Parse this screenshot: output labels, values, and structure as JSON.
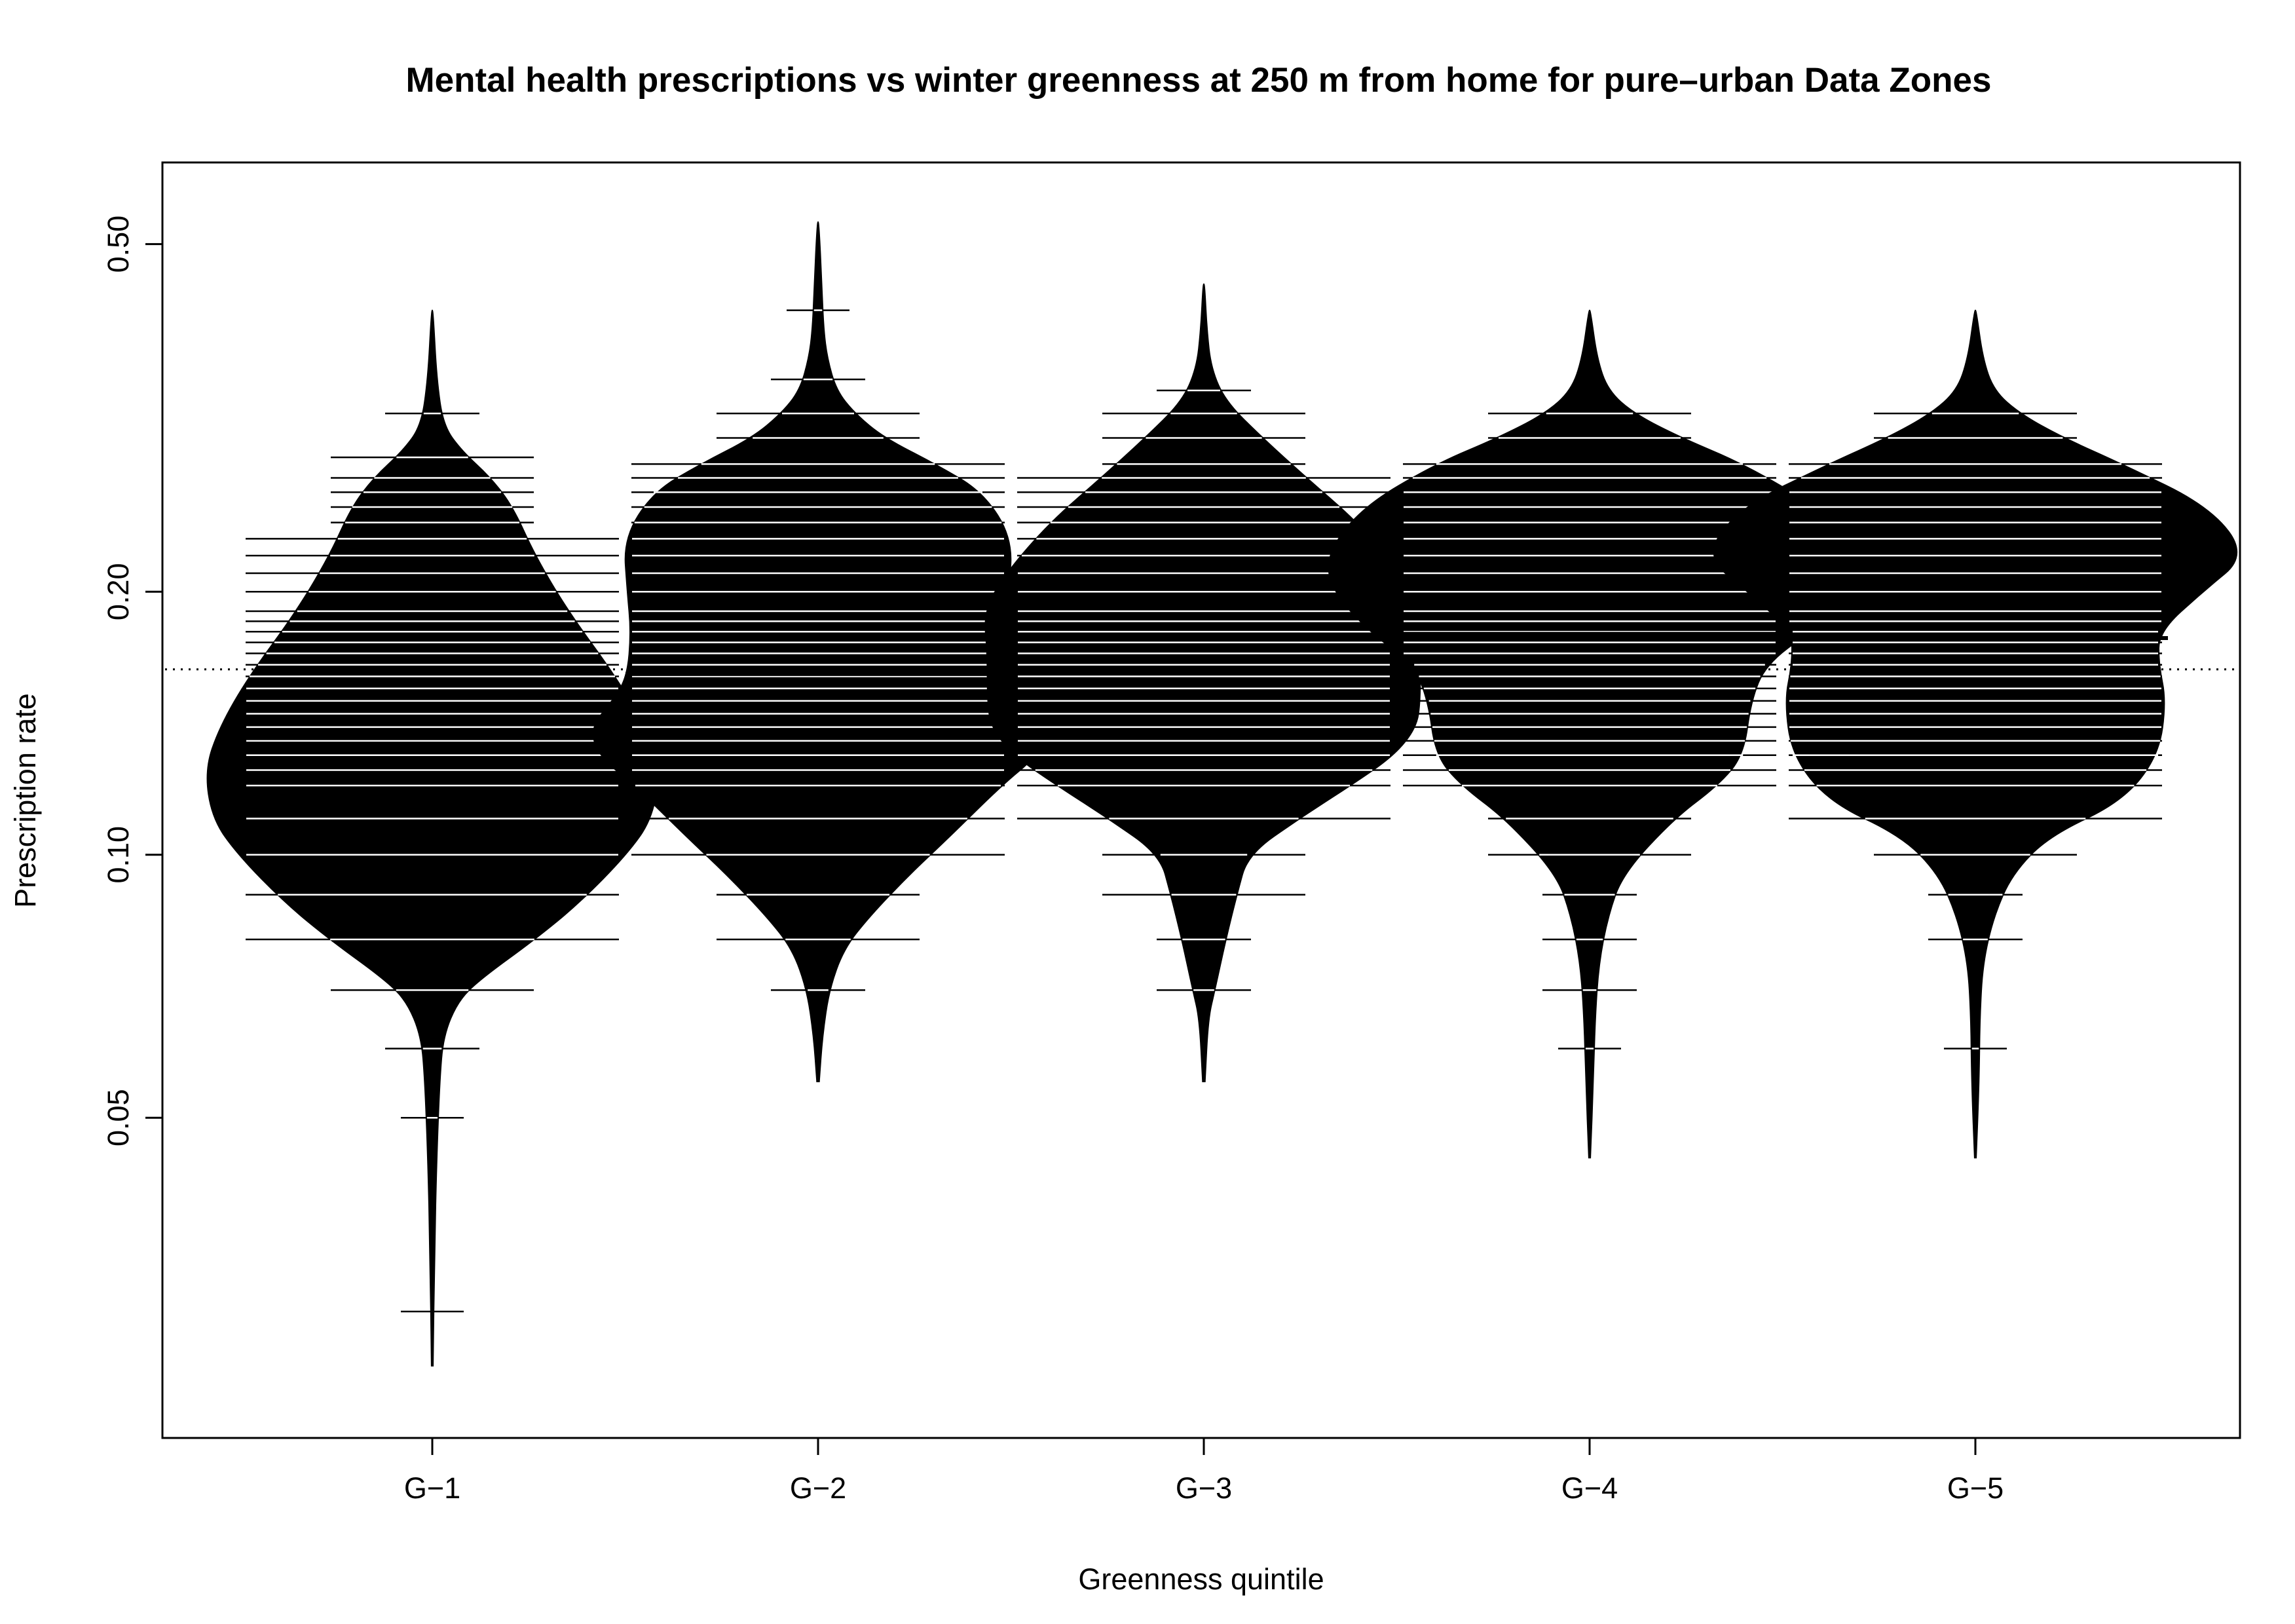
{
  "chart_data": {
    "type": "beanplot",
    "title": "Mental health prescriptions vs winter greenness at 250 m from home for pure–urban Data Zones",
    "xlabel": "Greenness quintile",
    "ylabel": "Prescription rate",
    "y_scale": "log",
    "ylim": [
      0.0215,
      0.62
    ],
    "y_ticks": [
      0.05,
      0.1,
      0.2,
      0.5
    ],
    "y_tick_labels": [
      "0.05",
      "0.10",
      "0.20",
      "0.50"
    ],
    "categories": [
      "G−1",
      "G−2",
      "G−3",
      "G−4",
      "G−5"
    ],
    "overall_mean": 0.163,
    "colors": {
      "bean_fill": "#000000",
      "lines": "#000000",
      "background": "#ffffff"
    },
    "series": [
      {
        "name": "G−1",
        "mean": 0.136,
        "density": [
          [
            0.026,
            0.002
          ],
          [
            0.035,
            0.006
          ],
          [
            0.045,
            0.012
          ],
          [
            0.055,
            0.02
          ],
          [
            0.062,
            0.03
          ],
          [
            0.068,
            0.07
          ],
          [
            0.072,
            0.13
          ],
          [
            0.08,
            0.28
          ],
          [
            0.088,
            0.4
          ],
          [
            0.1,
            0.53
          ],
          [
            0.11,
            0.6
          ],
          [
            0.125,
            0.62
          ],
          [
            0.14,
            0.58
          ],
          [
            0.16,
            0.5
          ],
          [
            0.19,
            0.37
          ],
          [
            0.22,
            0.28
          ],
          [
            0.25,
            0.22
          ],
          [
            0.27,
            0.16
          ],
          [
            0.29,
            0.08
          ],
          [
            0.31,
            0.03
          ],
          [
            0.35,
            0.012
          ],
          [
            0.42,
            0.002
          ]
        ],
        "obs": [
          0.03,
          0.05,
          0.06,
          0.07,
          0.08,
          0.09,
          0.1,
          0.11,
          0.12,
          0.125,
          0.13,
          0.135,
          0.14,
          0.145,
          0.15,
          0.155,
          0.16,
          0.165,
          0.17,
          0.175,
          0.18,
          0.185,
          0.19,
          0.2,
          0.21,
          0.22,
          0.23,
          0.24,
          0.25,
          0.26,
          0.27,
          0.285,
          0.32
        ]
      },
      {
        "name": "G−2",
        "mean": 0.161,
        "density": [
          [
            0.055,
            0.003
          ],
          [
            0.062,
            0.012
          ],
          [
            0.07,
            0.03
          ],
          [
            0.078,
            0.07
          ],
          [
            0.085,
            0.14
          ],
          [
            0.095,
            0.25
          ],
          [
            0.105,
            0.36
          ],
          [
            0.12,
            0.5
          ],
          [
            0.13,
            0.6
          ],
          [
            0.14,
            0.62
          ],
          [
            0.15,
            0.56
          ],
          [
            0.16,
            0.52
          ],
          [
            0.18,
            0.51
          ],
          [
            0.2,
            0.52
          ],
          [
            0.23,
            0.53
          ],
          [
            0.26,
            0.45
          ],
          [
            0.28,
            0.32
          ],
          [
            0.3,
            0.18
          ],
          [
            0.32,
            0.1
          ],
          [
            0.34,
            0.05
          ],
          [
            0.37,
            0.025
          ],
          [
            0.4,
            0.015
          ],
          [
            0.45,
            0.01
          ],
          [
            0.53,
            0.002
          ]
        ],
        "obs": [
          0.07,
          0.08,
          0.09,
          0.1,
          0.11,
          0.12,
          0.125,
          0.13,
          0.135,
          0.14,
          0.145,
          0.15,
          0.155,
          0.16,
          0.165,
          0.17,
          0.175,
          0.18,
          0.185,
          0.19,
          0.2,
          0.21,
          0.22,
          0.23,
          0.24,
          0.25,
          0.26,
          0.27,
          0.28,
          0.3,
          0.32,
          0.35,
          0.42
        ]
      },
      {
        "name": "G−3",
        "mean": 0.163,
        "density": [
          [
            0.055,
            0.003
          ],
          [
            0.065,
            0.012
          ],
          [
            0.07,
            0.03
          ],
          [
            0.08,
            0.06
          ],
          [
            0.09,
            0.09
          ],
          [
            0.1,
            0.12
          ],
          [
            0.11,
            0.26
          ],
          [
            0.12,
            0.4
          ],
          [
            0.13,
            0.52
          ],
          [
            0.14,
            0.58
          ],
          [
            0.15,
            0.59
          ],
          [
            0.17,
            0.59
          ],
          [
            0.19,
            0.6
          ],
          [
            0.21,
            0.54
          ],
          [
            0.24,
            0.42
          ],
          [
            0.27,
            0.28
          ],
          [
            0.3,
            0.16
          ],
          [
            0.33,
            0.06
          ],
          [
            0.36,
            0.02
          ],
          [
            0.4,
            0.008
          ],
          [
            0.45,
            0.002
          ]
        ],
        "obs": [
          0.07,
          0.08,
          0.09,
          0.1,
          0.11,
          0.12,
          0.125,
          0.13,
          0.135,
          0.14,
          0.145,
          0.15,
          0.155,
          0.16,
          0.165,
          0.17,
          0.175,
          0.18,
          0.185,
          0.19,
          0.2,
          0.21,
          0.22,
          0.23,
          0.24,
          0.25,
          0.26,
          0.27,
          0.28,
          0.3,
          0.32,
          0.34
        ]
      },
      {
        "name": "G−4",
        "mean": 0.179,
        "density": [
          [
            0.045,
            0.002
          ],
          [
            0.055,
            0.01
          ],
          [
            0.065,
            0.015
          ],
          [
            0.075,
            0.025
          ],
          [
            0.085,
            0.05
          ],
          [
            0.095,
            0.09
          ],
          [
            0.11,
            0.23
          ],
          [
            0.12,
            0.35
          ],
          [
            0.13,
            0.42
          ],
          [
            0.15,
            0.44
          ],
          [
            0.165,
            0.48
          ],
          [
            0.18,
            0.6
          ],
          [
            0.2,
            0.7
          ],
          [
            0.22,
            0.72
          ],
          [
            0.25,
            0.62
          ],
          [
            0.28,
            0.42
          ],
          [
            0.3,
            0.25
          ],
          [
            0.32,
            0.12
          ],
          [
            0.34,
            0.05
          ],
          [
            0.37,
            0.02
          ],
          [
            0.42,
            0.002
          ]
        ],
        "obs": [
          0.06,
          0.07,
          0.08,
          0.09,
          0.1,
          0.11,
          0.12,
          0.125,
          0.13,
          0.135,
          0.14,
          0.145,
          0.15,
          0.155,
          0.16,
          0.165,
          0.17,
          0.175,
          0.18,
          0.185,
          0.19,
          0.2,
          0.21,
          0.22,
          0.23,
          0.24,
          0.25,
          0.26,
          0.27,
          0.28,
          0.3,
          0.32
        ]
      },
      {
        "name": "G−5",
        "mean": 0.177,
        "density": [
          [
            0.045,
            0.002
          ],
          [
            0.055,
            0.01
          ],
          [
            0.065,
            0.012
          ],
          [
            0.075,
            0.02
          ],
          [
            0.085,
            0.05
          ],
          [
            0.095,
            0.1
          ],
          [
            0.105,
            0.2
          ],
          [
            0.115,
            0.4
          ],
          [
            0.13,
            0.5
          ],
          [
            0.15,
            0.52
          ],
          [
            0.165,
            0.5
          ],
          [
            0.18,
            0.5
          ],
          [
            0.2,
            0.62
          ],
          [
            0.22,
            0.74
          ],
          [
            0.25,
            0.64
          ],
          [
            0.28,
            0.4
          ],
          [
            0.3,
            0.24
          ],
          [
            0.32,
            0.12
          ],
          [
            0.34,
            0.05
          ],
          [
            0.37,
            0.02
          ],
          [
            0.42,
            0.002
          ]
        ],
        "obs": [
          0.06,
          0.08,
          0.09,
          0.1,
          0.11,
          0.12,
          0.125,
          0.13,
          0.135,
          0.14,
          0.145,
          0.15,
          0.155,
          0.16,
          0.165,
          0.17,
          0.175,
          0.18,
          0.185,
          0.19,
          0.2,
          0.21,
          0.22,
          0.23,
          0.24,
          0.25,
          0.26,
          0.27,
          0.28,
          0.3,
          0.32
        ]
      }
    ]
  }
}
